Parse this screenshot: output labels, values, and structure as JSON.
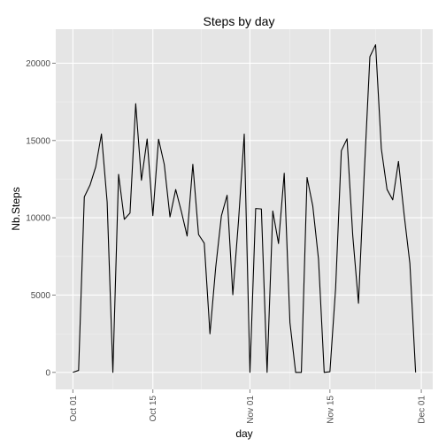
{
  "chart_data": {
    "type": "line",
    "title": "Steps by day",
    "xlabel": "day",
    "ylabel": "Nb.Steps",
    "x_ticks": [
      "Oct 01",
      "Oct 15",
      "Nov 01",
      "Nov 15",
      "Dec 01"
    ],
    "y_ticks": [
      0,
      5000,
      10000,
      15000,
      20000
    ],
    "xlim": [
      "2012-09-28",
      "2012-12-03"
    ],
    "ylim": [
      -1100,
      22200
    ],
    "grid": true,
    "background": "#e5e5e5",
    "grid_color": "#ffffff",
    "line_color": "#000000",
    "series": [
      {
        "x": [
          "2012-10-01",
          "2012-10-02",
          "2012-10-03",
          "2012-10-04",
          "2012-10-05",
          "2012-10-06",
          "2012-10-07",
          "2012-10-08",
          "2012-10-09",
          "2012-10-10",
          "2012-10-11",
          "2012-10-12",
          "2012-10-13",
          "2012-10-14",
          "2012-10-15",
          "2012-10-16",
          "2012-10-17",
          "2012-10-18",
          "2012-10-19",
          "2012-10-20",
          "2012-10-21",
          "2012-10-22",
          "2012-10-23",
          "2012-10-24",
          "2012-10-25",
          "2012-10-26",
          "2012-10-27",
          "2012-10-28",
          "2012-10-29",
          "2012-10-30",
          "2012-10-31",
          "2012-11-01",
          "2012-11-02",
          "2012-11-03",
          "2012-11-04",
          "2012-11-05",
          "2012-11-06",
          "2012-11-07",
          "2012-11-08",
          "2012-11-09",
          "2012-11-10",
          "2012-11-11",
          "2012-11-12",
          "2012-11-13",
          "2012-11-14",
          "2012-11-15",
          "2012-11-16",
          "2012-11-17",
          "2012-11-18",
          "2012-11-19",
          "2012-11-20",
          "2012-11-21",
          "2012-11-22",
          "2012-11-23",
          "2012-11-24",
          "2012-11-25",
          "2012-11-26",
          "2012-11-27",
          "2012-11-28",
          "2012-11-29",
          "2012-11-30"
        ],
        "y": [
          0,
          126,
          11352,
          12116,
          13294,
          15420,
          11015,
          0,
          12811,
          9900,
          10304,
          17382,
          12426,
          15098,
          10139,
          15084,
          13452,
          10056,
          11829,
          10395,
          8821,
          13460,
          8918,
          8355,
          2492,
          6778,
          10119,
          11458,
          5018,
          9819,
          15414,
          0,
          10600,
          10571,
          0,
          10439,
          8334,
          12883,
          3219,
          0,
          0,
          12608,
          10765,
          7336,
          0,
          41,
          5441,
          14339,
          15110,
          8841,
          4472,
          12787,
          20427,
          21194,
          14478,
          11834,
          11162,
          13646,
          10183,
          7047,
          0
        ]
      }
    ]
  }
}
